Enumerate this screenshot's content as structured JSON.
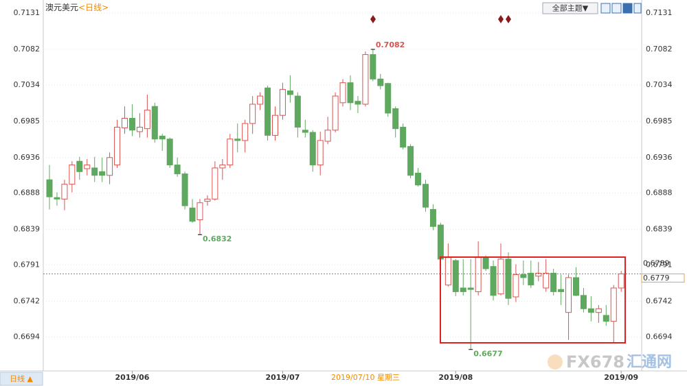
{
  "header": {
    "symbol": "澳元美元",
    "period": "<日线>",
    "theme_button": "全部主题▼",
    "period_button": "日线 ▲",
    "cursor_date": "2019/07/10 星期三",
    "watermark": "FX678",
    "watermark_site": "汇通网"
  },
  "chart_data": {
    "type": "candlestick",
    "categories": [
      null,
      null,
      null,
      null,
      null,
      null,
      null,
      null,
      null,
      null,
      null,
      "2019/06",
      null,
      null,
      null,
      null,
      null,
      null,
      null,
      null,
      null,
      null,
      null,
      null,
      null,
      null,
      null,
      null,
      null,
      null,
      null,
      "2019/07",
      null,
      null,
      null,
      null,
      null,
      null,
      null,
      null,
      null,
      null,
      null,
      null,
      null,
      null,
      null,
      null,
      null,
      null,
      null,
      null,
      null,
      null,
      "2019/08",
      null,
      null,
      null,
      null,
      null,
      null,
      null,
      null,
      null,
      null,
      null,
      null,
      null,
      null,
      null,
      null,
      null,
      null,
      null,
      null,
      null,
      "2019/09"
    ],
    "open": [
      0.6906,
      0.6882,
      0.688,
      0.69,
      0.6931,
      0.6921,
      0.6922,
      0.6917,
      0.6912,
      0.6926,
      0.6976,
      0.6989,
      0.6971,
      0.6975,
      0.7005,
      0.6965,
      0.6961,
      0.6926,
      0.6914,
      0.6868,
      0.6852,
      0.6877,
      0.688,
      0.6922,
      0.6926,
      0.6961,
      0.6959,
      0.6982,
      0.7008,
      0.703,
      0.6966,
      0.6993,
      0.7026,
      0.7019,
      0.6973,
      0.697,
      0.6926,
      0.6958,
      0.6973,
      0.701,
      0.7037,
      0.7012,
      0.7008,
      0.7075,
      0.7042,
      0.7036,
      0.7002,
      0.6977,
      0.6951,
      0.6915,
      0.69,
      0.6866,
      0.6845,
      0.6764,
      0.6797,
      0.676,
      0.676,
      0.6755,
      0.6801,
      0.6789,
      0.6752,
      0.6799,
      0.6748,
      0.6778,
      0.678,
      0.6776,
      0.676,
      0.678,
      0.6758,
      0.6727,
      0.6774,
      0.675,
      0.6732,
      0.6727,
      0.6723,
      0.6715,
      0.676
    ],
    "high": [
      0.6926,
      0.6889,
      0.6906,
      0.6931,
      0.6937,
      0.6934,
      0.6937,
      0.6936,
      0.6943,
      0.6987,
      0.7005,
      0.7008,
      0.6996,
      0.7021,
      0.701,
      0.6968,
      0.6963,
      0.6936,
      0.6917,
      0.688,
      0.688,
      0.6885,
      0.6931,
      0.6934,
      0.6968,
      0.6982,
      0.6987,
      0.7019,
      0.7024,
      0.7033,
      0.7005,
      0.7037,
      0.7047,
      0.7024,
      0.6987,
      0.6973,
      0.6971,
      0.6991,
      0.7024,
      0.7042,
      0.7047,
      0.7019,
      0.7079,
      0.7082,
      0.7049,
      0.7037,
      0.7005,
      0.6982,
      0.6954,
      0.6922,
      0.6906,
      0.6873,
      0.6848,
      0.682,
      0.6799,
      0.6799,
      0.6799,
      0.6823,
      0.6804,
      0.6797,
      0.682,
      0.6808,
      0.6792,
      0.6797,
      0.6797,
      0.6795,
      0.6799,
      0.6786,
      0.6778,
      0.6778,
      0.6788,
      0.676,
      0.6749,
      0.6737,
      0.6737,
      0.6764,
      0.6783
    ],
    "low": [
      0.6866,
      0.6871,
      0.6865,
      0.6889,
      0.6906,
      0.6912,
      0.6903,
      0.6903,
      0.69,
      0.6922,
      0.6968,
      0.6965,
      0.6963,
      0.6963,
      0.6956,
      0.6945,
      0.6922,
      0.691,
      0.6866,
      0.6848,
      0.6832,
      0.6871,
      0.6878,
      0.6906,
      0.6922,
      0.6943,
      0.6943,
      0.6968,
      0.7,
      0.6959,
      0.6959,
      0.6987,
      0.701,
      0.6963,
      0.6963,
      0.6917,
      0.6912,
      0.6954,
      0.697,
      0.7005,
      0.7,
      0.6996,
      0.7005,
      0.7039,
      0.7028,
      0.6991,
      0.6963,
      0.6947,
      0.6908,
      0.6897,
      0.6863,
      0.6838,
      0.6797,
      0.6762,
      0.6749,
      0.675,
      0.6677,
      0.675,
      0.6783,
      0.6743,
      0.675,
      0.6737,
      0.6741,
      0.6764,
      0.676,
      0.6769,
      0.6755,
      0.675,
      0.6737,
      0.669,
      0.6749,
      0.6727,
      0.6715,
      0.6713,
      0.6709,
      0.6686,
      0.6755
    ],
    "close": [
      0.6883,
      0.688,
      0.69,
      0.6926,
      0.6917,
      0.6926,
      0.6912,
      0.6912,
      0.6936,
      0.6977,
      0.6989,
      0.6973,
      0.6977,
      0.7,
      0.6961,
      0.6961,
      0.6926,
      0.6914,
      0.6871,
      0.685,
      0.6875,
      0.688,
      0.6922,
      0.6926,
      0.6961,
      0.6959,
      0.6982,
      0.7008,
      0.7019,
      0.6966,
      0.6993,
      0.7028,
      0.7021,
      0.6977,
      0.697,
      0.6926,
      0.6959,
      0.6973,
      0.7019,
      0.7037,
      0.701,
      0.7008,
      0.7075,
      0.7042,
      0.7033,
      0.6996,
      0.6975,
      0.695,
      0.6912,
      0.6899,
      0.6869,
      0.6843,
      0.6799,
      0.6801,
      0.6755,
      0.6755,
      0.6758,
      0.6801,
      0.6786,
      0.675,
      0.6799,
      0.6746,
      0.6778,
      0.6774,
      0.6764,
      0.678,
      0.678,
      0.6755,
      0.6755,
      0.6774,
      0.675,
      0.6732,
      0.6727,
      0.6732,
      0.6715,
      0.676,
      0.6779
    ],
    "up_color": "#d9534f",
    "down_color": "#5fa85f",
    "ylim": [
      0.6649,
      0.7144
    ],
    "yticks": [
      0.7131,
      0.7082,
      0.7034,
      0.6985,
      0.6936,
      0.6888,
      0.6839,
      0.6791,
      0.6742,
      0.6694
    ],
    "grid": true,
    "annotations": [
      0.7082,
      0.6832,
      0.6677
    ],
    "cursor_price": 0.6789,
    "last_price": 0.6779
  }
}
